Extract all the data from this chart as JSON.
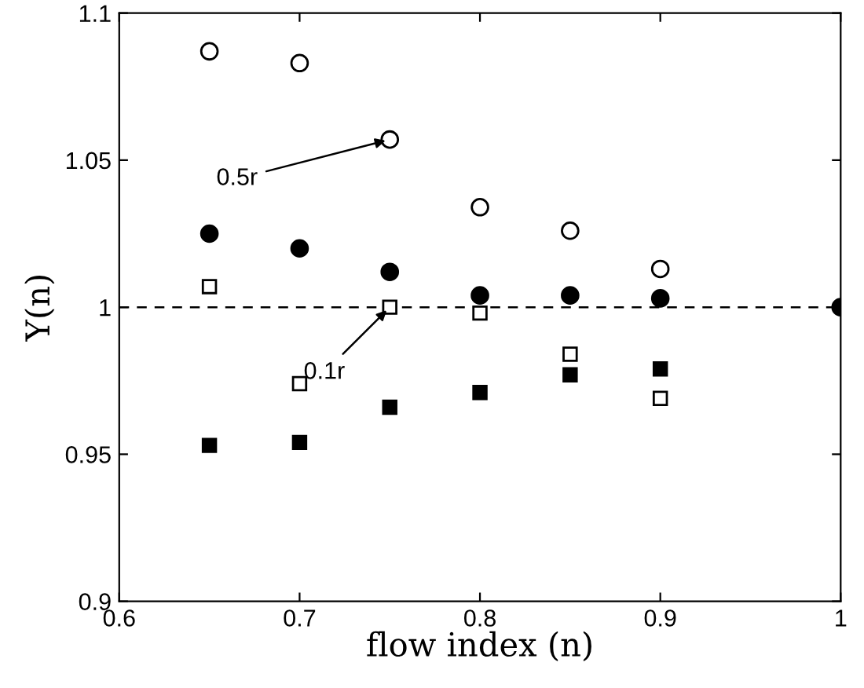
{
  "chart_data": {
    "type": "scatter",
    "xlabel": "flow index (n)",
    "ylabel": "Y(n)",
    "xlim": [
      0.6,
      1
    ],
    "ylim": [
      0.9,
      1.1
    ],
    "xticks": [
      0.6,
      0.7,
      0.8,
      0.9,
      1
    ],
    "yticks": [
      0.9,
      0.95,
      1,
      1.05,
      1.1
    ],
    "grid": false,
    "legend": false,
    "series": [
      {
        "marker": "circle",
        "color": "#ffffff",
        "x": [
          0.65,
          0.7,
          0.75,
          0.8,
          0.85,
          0.9
        ],
        "values": [
          1.087,
          1.083,
          1.057,
          1.034,
          1.026,
          1.013
        ]
      },
      {
        "marker": "circle",
        "color": "#000000",
        "x": [
          0.65,
          0.7,
          0.75,
          0.8,
          0.85,
          0.9,
          1.0
        ],
        "values": [
          1.025,
          1.02,
          1.012,
          1.004,
          1.004,
          1.003,
          1.0
        ]
      },
      {
        "marker": "square",
        "color": "#ffffff",
        "x": [
          0.65,
          0.7,
          0.75,
          0.8,
          0.85,
          0.9
        ],
        "values": [
          1.007,
          0.974,
          1.0,
          0.998,
          0.984,
          0.969
        ]
      },
      {
        "marker": "square",
        "color": "#000000",
        "x": [
          0.65,
          0.7,
          0.75,
          0.8,
          0.85,
          0.9
        ],
        "values": [
          0.953,
          0.954,
          0.966,
          0.971,
          0.977,
          0.979
        ]
      }
    ],
    "ref_lines": [
      {
        "axis": "y",
        "value": 1,
        "line_style": "dashed",
        "color": "#000000"
      }
    ],
    "annotations": [
      {
        "text": "0.5r",
        "x": 0.75,
        "y": 1.057
      },
      {
        "text": "0.1r",
        "x": 0.75,
        "y": 1.0
      }
    ]
  }
}
